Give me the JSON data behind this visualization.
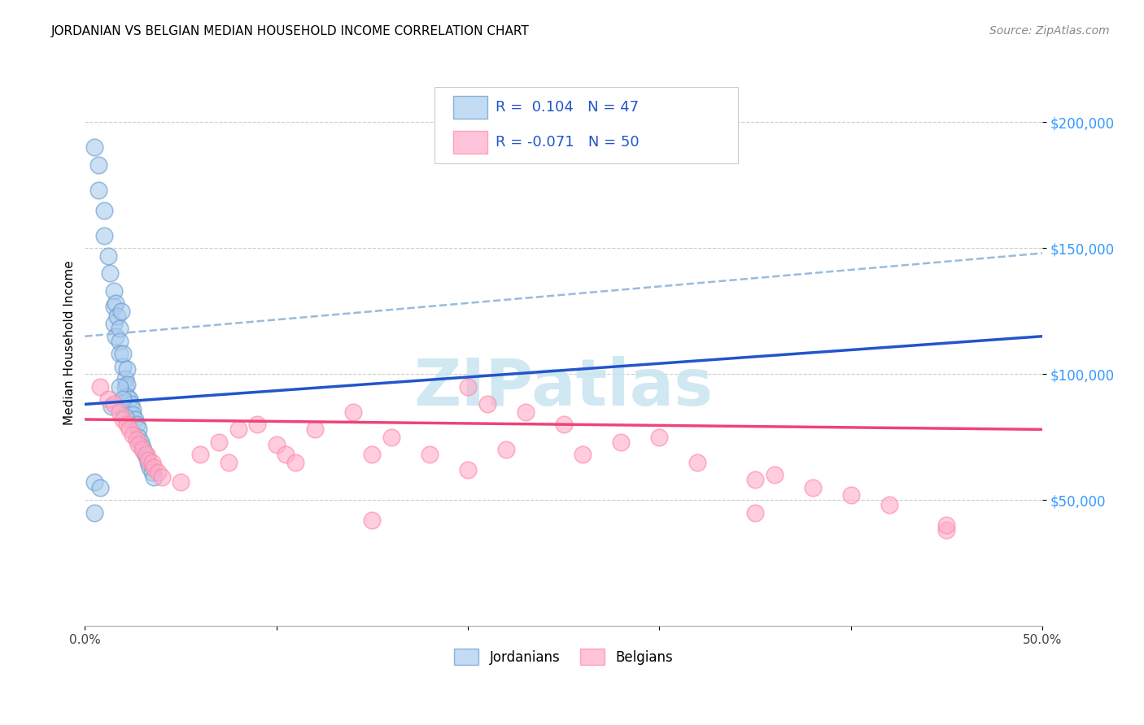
{
  "title": "JORDANIAN VS BELGIAN MEDIAN HOUSEHOLD INCOME CORRELATION CHART",
  "source": "Source: ZipAtlas.com",
  "ylabel": "Median Household Income",
  "xmin": 0.0,
  "xmax": 0.5,
  "ymin": 0,
  "ymax": 225000,
  "yticks": [
    50000,
    100000,
    150000,
    200000
  ],
  "ytick_labels": [
    "$50,000",
    "$100,000",
    "$150,000",
    "$200,000"
  ],
  "xticks": [
    0.0,
    0.1,
    0.2,
    0.3,
    0.4,
    0.5
  ],
  "xtick_labels": [
    "0.0%",
    "",
    "",
    "",
    "",
    "50.0%"
  ],
  "jordanians_x": [
    0.005,
    0.007,
    0.007,
    0.01,
    0.01,
    0.012,
    0.013,
    0.015,
    0.015,
    0.015,
    0.016,
    0.016,
    0.017,
    0.018,
    0.018,
    0.018,
    0.019,
    0.02,
    0.02,
    0.021,
    0.021,
    0.022,
    0.022,
    0.022,
    0.023,
    0.024,
    0.025,
    0.025,
    0.026,
    0.027,
    0.028,
    0.028,
    0.029,
    0.03,
    0.031,
    0.032,
    0.033,
    0.034,
    0.035,
    0.036,
    0.005,
    0.008,
    0.018,
    0.02,
    0.014,
    0.005,
    0.021
  ],
  "jordanians_y": [
    190000,
    183000,
    173000,
    165000,
    155000,
    147000,
    140000,
    133000,
    127000,
    120000,
    115000,
    128000,
    123000,
    118000,
    113000,
    108000,
    125000,
    103000,
    108000,
    98000,
    95000,
    102000,
    96000,
    91000,
    90000,
    88000,
    86000,
    84000,
    82000,
    80000,
    78000,
    75000,
    73000,
    71000,
    69000,
    67000,
    65000,
    63000,
    61000,
    59000,
    57000,
    55000,
    95000,
    90000,
    87000,
    45000,
    83000
  ],
  "belgians_x": [
    0.008,
    0.012,
    0.015,
    0.018,
    0.02,
    0.022,
    0.023,
    0.025,
    0.027,
    0.028,
    0.03,
    0.032,
    0.033,
    0.035,
    0.036,
    0.038,
    0.04,
    0.05,
    0.06,
    0.07,
    0.075,
    0.08,
    0.09,
    0.1,
    0.105,
    0.11,
    0.12,
    0.14,
    0.15,
    0.16,
    0.18,
    0.2,
    0.21,
    0.22,
    0.23,
    0.25,
    0.26,
    0.28,
    0.3,
    0.32,
    0.35,
    0.36,
    0.38,
    0.4,
    0.42,
    0.45,
    0.15,
    0.2,
    0.35,
    0.45
  ],
  "belgians_y": [
    95000,
    90000,
    88000,
    85000,
    82000,
    80000,
    78000,
    76000,
    74000,
    72000,
    70000,
    68000,
    66000,
    65000,
    63000,
    61000,
    59000,
    57000,
    68000,
    73000,
    65000,
    78000,
    80000,
    72000,
    68000,
    65000,
    78000,
    85000,
    68000,
    75000,
    68000,
    95000,
    88000,
    70000,
    85000,
    80000,
    68000,
    73000,
    75000,
    65000,
    58000,
    60000,
    55000,
    52000,
    48000,
    38000,
    42000,
    62000,
    45000,
    40000
  ],
  "jordan_color": "#aaccee",
  "belgian_color": "#ffaacc",
  "jordan_edge_color": "#6699cc",
  "belgian_edge_color": "#ff8899",
  "jordan_line_color": "#2255cc",
  "belgian_line_color": "#ee4477",
  "dashed_line_color": "#99bbdd",
  "jordan_R": "0.104",
  "jordan_N": "47",
  "belgian_R": "-0.071",
  "belgian_N": "50",
  "legend_label_1": "Jordanians",
  "legend_label_2": "Belgians",
  "background_color": "#ffffff",
  "grid_color": "#cccccc",
  "watermark_text": "ZIPatlas",
  "watermark_color": "#c8e4f0",
  "title_fontsize": 11,
  "source_fontsize": 10,
  "ytick_fontsize": 12,
  "xtick_fontsize": 11,
  "legend_fontsize": 13
}
